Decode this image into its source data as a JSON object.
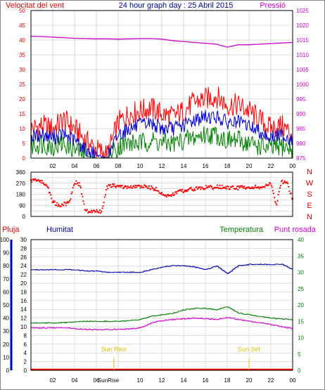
{
  "header": {
    "title": "24 hour graph day : 25 Abril 2015",
    "left_label": "Velocitat del vent",
    "right_label": "Pressió"
  },
  "colors": {
    "wind_axis": "#e00000",
    "pressure": "#d000d0",
    "gust": "#ff0000",
    "wind_avg": "#0000d0",
    "wind_min": "#008000",
    "direction": "#ff0000",
    "humidity": "#0000b0",
    "temperature": "#008000",
    "dewpoint": "#d000d0",
    "rain": "#ff0000",
    "sun": "#e0c000",
    "title": "#0000a0",
    "grid": "#bbbbbb",
    "rain_axis": "#0000c0"
  },
  "x_ticks": [
    "02",
    "04",
    "06",
    "08",
    "10",
    "12",
    "14",
    "16",
    "18",
    "20",
    "22",
    "00"
  ],
  "bottom_x_ticks": [
    "02",
    "04",
    "06",
    "SunRise",
    "10",
    "12",
    "14",
    "16",
    "18",
    "20",
    "22",
    "00"
  ],
  "compass": [
    "N",
    "W",
    "S",
    "E",
    "N"
  ],
  "panel3_labels": {
    "rain": "Pluja",
    "humidity": "Humitat",
    "temperature": "Temperatura",
    "dewpoint": "Punt rosada"
  },
  "sun": {
    "rise_label": "Sun Rise",
    "set_label": "Sun Set",
    "rise_hour": 7.6,
    "set_hour": 20.0
  },
  "chart_data": [
    {
      "type": "line",
      "title": "24 hour graph day : 25 Abril 2015",
      "ylabel": "Velocitat del vent",
      "y2label": "Pressió",
      "ylim": [
        0,
        50
      ],
      "y2lim": [
        975,
        1025
      ],
      "y_ticks": [
        0,
        5,
        10,
        15,
        20,
        25,
        30,
        35,
        40,
        45,
        50
      ],
      "y2_ticks": [
        975,
        980,
        985,
        990,
        995,
        1000,
        1005,
        1010,
        1015,
        1020,
        1025
      ],
      "x_hours": [
        0,
        1,
        2,
        3,
        4,
        5,
        6,
        7,
        8,
        9,
        10,
        11,
        12,
        13,
        14,
        15,
        16,
        17,
        18,
        19,
        20,
        21,
        22,
        23,
        24
      ],
      "series": [
        {
          "key": "gust",
          "values": [
            10,
            11,
            10,
            13,
            10,
            6,
            3,
            1,
            12,
            15,
            16,
            17,
            15,
            14,
            16,
            19,
            20,
            21,
            18,
            18,
            16,
            13,
            10,
            11,
            8
          ]
        },
        {
          "key": "avg",
          "values": [
            7,
            8,
            7,
            8,
            6,
            3,
            1,
            0,
            8,
            10,
            11,
            12,
            10,
            10,
            11,
            13,
            14,
            14,
            12,
            12,
            11,
            9,
            7,
            8,
            6
          ]
        },
        {
          "key": "min",
          "values": [
            4,
            5,
            4,
            5,
            3,
            1,
            0,
            0,
            4,
            5,
            5,
            6,
            5,
            5,
            6,
            7,
            8,
            8,
            6,
            6,
            5,
            4,
            3,
            4,
            3
          ]
        },
        {
          "key": "pressure",
          "y_axis": "right",
          "values": [
            1016.3,
            1016.2,
            1016.0,
            1015.8,
            1015.6,
            1015.5,
            1015.4,
            1015.4,
            1015.3,
            1015.4,
            1015.5,
            1015.5,
            1015.3,
            1014.8,
            1014.5,
            1014.2,
            1013.9,
            1013.6,
            1012.6,
            1013.4,
            1013.4,
            1013.6,
            1013.8,
            1014.0,
            1014.2
          ]
        }
      ]
    },
    {
      "type": "scatter",
      "ylim": [
        0,
        360
      ],
      "y_ticks": [
        0,
        45,
        90,
        135,
        180,
        225,
        270,
        315,
        360
      ],
      "x_hours": [
        0,
        0.5,
        1,
        1.5,
        2,
        2.5,
        3,
        3.5,
        4,
        4.5,
        5,
        5.5,
        6,
        6.5,
        7,
        7.5,
        8,
        8.5,
        9,
        9.5,
        10,
        10.5,
        11,
        11.5,
        12,
        12.5,
        13,
        13.5,
        14,
        14.5,
        15,
        15.5,
        16,
        16.5,
        17,
        17.5,
        18,
        18.5,
        19,
        19.5,
        20,
        20.5,
        21,
        21.5,
        22,
        22.5,
        23,
        23.5,
        24
      ],
      "values": [
        290,
        300,
        280,
        250,
        120,
        90,
        100,
        110,
        280,
        260,
        40,
        40,
        40,
        40,
        240,
        250,
        245,
        240,
        235,
        240,
        245,
        240,
        235,
        220,
        190,
        160,
        180,
        200,
        210,
        220,
        225,
        230,
        235,
        235,
        240,
        240,
        230,
        235,
        230,
        240,
        235,
        240,
        235,
        240,
        270,
        90,
        280,
        275,
        140
      ]
    },
    {
      "type": "line",
      "ylim": [
        0,
        30
      ],
      "y_left_ticks": [
        0,
        2,
        4,
        6,
        8,
        10,
        12,
        14,
        16,
        18,
        20,
        22,
        24,
        26,
        28,
        30
      ],
      "y_rain_ticks": [
        0,
        10,
        20,
        30,
        40,
        50,
        60,
        70,
        80,
        90,
        100
      ],
      "y_right_ticks": [
        0,
        5,
        10,
        15,
        20,
        25,
        30,
        35,
        40
      ],
      "y_right_lim": [
        0,
        40
      ],
      "x_hours": [
        0,
        1,
        2,
        3,
        4,
        5,
        6,
        7,
        8,
        9,
        10,
        11,
        12,
        13,
        14,
        15,
        16,
        17,
        18,
        19,
        20,
        21,
        22,
        23,
        24
      ],
      "series": [
        {
          "key": "humidity",
          "y_axis": "inner-left",
          "values": [
            77,
            77,
            77,
            77,
            77,
            76,
            76,
            75,
            75,
            75,
            75,
            77,
            79,
            80,
            80,
            79,
            77,
            80,
            74,
            80,
            81,
            81,
            81,
            81,
            77
          ]
        },
        {
          "key": "temperature",
          "y_axis": "right",
          "values": [
            14.5,
            14.5,
            14.5,
            14.6,
            14.8,
            15,
            15,
            15,
            15,
            15.2,
            15.5,
            16.5,
            17,
            17.5,
            18.5,
            19,
            19,
            18.5,
            19.5,
            17.5,
            17,
            16.5,
            16,
            15.7,
            15.5
          ]
        },
        {
          "key": "dewpoint",
          "y_axis": "right",
          "values": [
            13,
            13,
            13,
            13,
            12.8,
            12.5,
            12.5,
            12.5,
            12.5,
            12.7,
            13,
            14.5,
            15.2,
            15.5,
            15.8,
            16,
            15.8,
            15.6,
            16.2,
            15.5,
            15,
            14.5,
            14,
            13.3,
            12.8
          ]
        },
        {
          "key": "rain",
          "y_axis": "left",
          "values": [
            0,
            0,
            0,
            0,
            0,
            0,
            0,
            0,
            0,
            0,
            0,
            0,
            0,
            0,
            0,
            0,
            0,
            0,
            0,
            0,
            0,
            0,
            0,
            0,
            0
          ]
        }
      ]
    }
  ]
}
